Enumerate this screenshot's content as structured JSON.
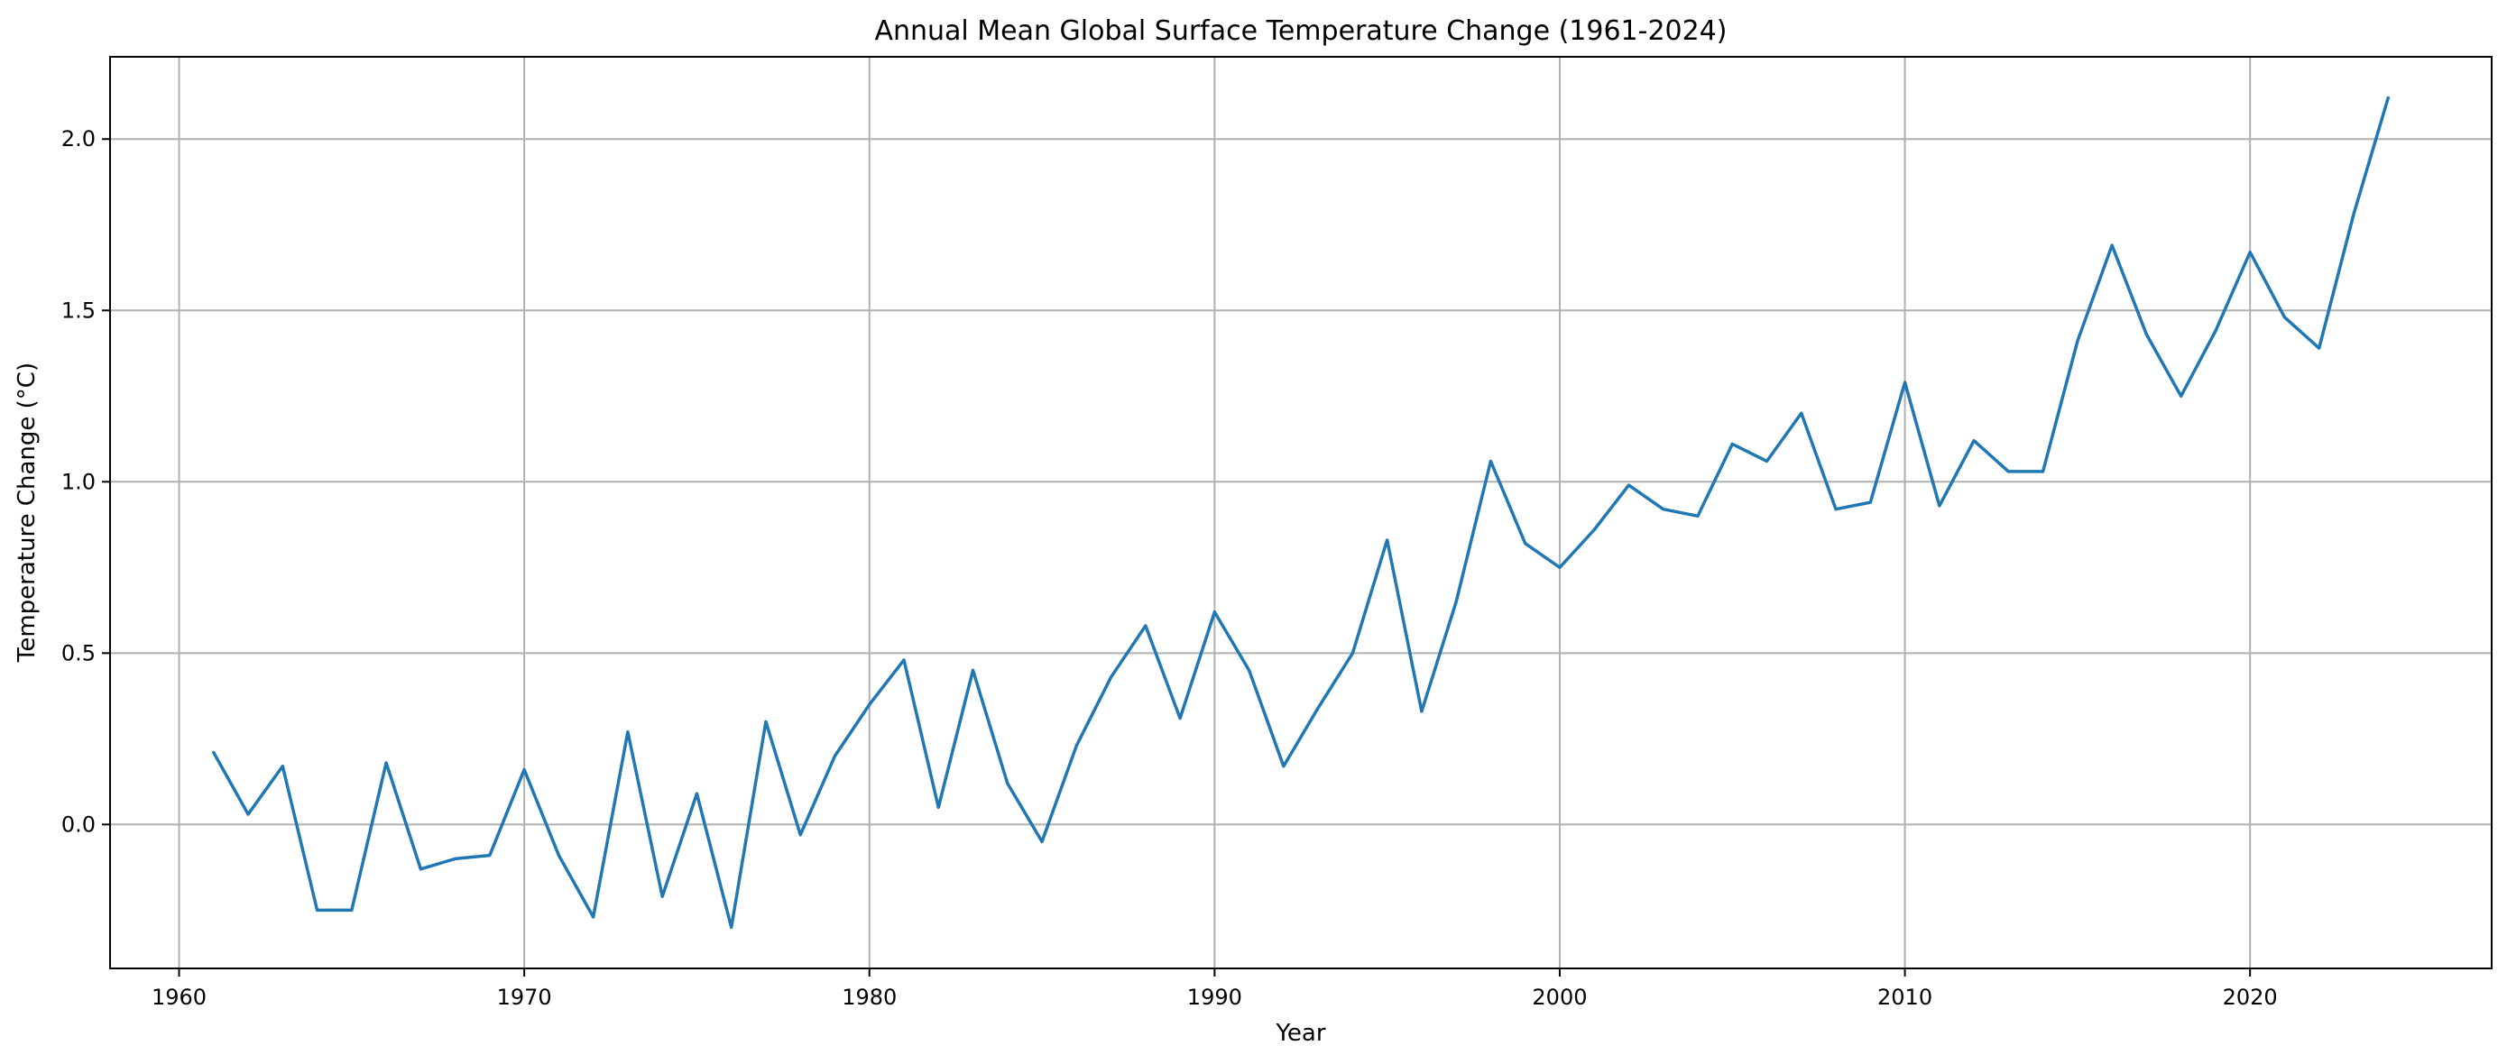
{
  "chart_data": {
    "type": "line",
    "title": "Annual Mean Global Surface Temperature Change (1961-2024)",
    "xlabel": "Year",
    "ylabel": "Temperature Change (°C)",
    "xlim": [
      1958,
      2027
    ],
    "ylim": [
      -0.42,
      2.24
    ],
    "xticks": [
      1960,
      1970,
      1980,
      1990,
      2000,
      2010,
      2020
    ],
    "yticks": [
      0.0,
      0.5,
      1.0,
      1.5,
      2.0
    ],
    "ytick_labels": [
      "0.0",
      "0.5",
      "1.0",
      "1.5",
      "2.0"
    ],
    "grid": true,
    "line_color": "#1f77b4",
    "x": [
      1961,
      1962,
      1963,
      1964,
      1965,
      1966,
      1967,
      1968,
      1969,
      1970,
      1971,
      1972,
      1973,
      1974,
      1975,
      1976,
      1977,
      1978,
      1979,
      1980,
      1981,
      1982,
      1983,
      1984,
      1985,
      1986,
      1987,
      1988,
      1989,
      1990,
      1991,
      1992,
      1993,
      1994,
      1995,
      1996,
      1997,
      1998,
      1999,
      2000,
      2001,
      2002,
      2003,
      2004,
      2005,
      2006,
      2007,
      2008,
      2009,
      2010,
      2011,
      2012,
      2013,
      2014,
      2015,
      2016,
      2017,
      2018,
      2019,
      2020,
      2021,
      2022,
      2023,
      2024
    ],
    "series": [
      {
        "values": [
          0.21,
          0.03,
          0.17,
          -0.25,
          -0.25,
          0.18,
          -0.13,
          -0.1,
          -0.09,
          0.16,
          -0.09,
          -0.27,
          0.27,
          -0.21,
          0.09,
          -0.3,
          0.3,
          -0.03,
          0.2,
          0.35,
          0.48,
          0.05,
          0.45,
          0.12,
          -0.05,
          0.23,
          0.43,
          0.58,
          0.31,
          0.62,
          0.45,
          0.17,
          0.34,
          0.5,
          0.83,
          0.33,
          0.65,
          1.06,
          0.82,
          0.75,
          0.86,
          0.99,
          0.92,
          0.9,
          1.11,
          1.06,
          1.2,
          0.92,
          0.94,
          1.29,
          0.93,
          1.12,
          1.03,
          1.03,
          1.41,
          1.69,
          1.43,
          1.25,
          1.44,
          1.67,
          1.48,
          1.39,
          1.78,
          2.12
        ]
      }
    ]
  }
}
